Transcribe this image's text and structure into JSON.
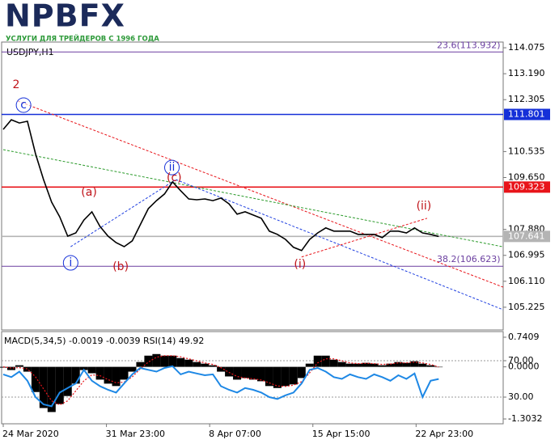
{
  "header": {
    "logo": "NPBFX",
    "tagline": "УСЛУГИ ДЛЯ ТРЕЙДЕРОВ С 1996 ГОДА"
  },
  "chart_data": [
    {
      "type": "line",
      "title": "USDJPY,H1",
      "color": "#000000",
      "x": [
        0,
        2.5,
        5,
        7.5,
        10,
        12.5,
        15,
        17.5,
        20,
        22.5,
        25,
        27.5,
        30,
        32.5,
        35,
        37.5,
        40,
        42.5,
        45,
        47.5,
        50,
        52.5,
        55,
        57.5,
        60,
        62.5,
        65,
        67.5,
        70,
        72.5,
        75,
        77.5,
        80,
        82.5,
        85,
        87.5,
        90,
        92.5,
        95,
        97.5,
        100,
        102.5,
        105,
        107.5,
        110,
        112.5,
        115,
        117.5,
        120,
        122.5,
        125,
        127.5,
        130,
        132.5,
        135
      ],
      "values": [
        111.29,
        111.62,
        111.51,
        111.57,
        110.46,
        109.58,
        108.81,
        108.31,
        107.65,
        107.76,
        108.2,
        108.48,
        107.98,
        107.65,
        107.43,
        107.29,
        107.49,
        108.04,
        108.59,
        108.86,
        109.09,
        109.5,
        109.2,
        108.92,
        108.89,
        108.92,
        108.86,
        108.95,
        108.75,
        108.4,
        108.48,
        108.37,
        108.26,
        107.82,
        107.71,
        107.54,
        107.27,
        107.16,
        107.54,
        107.76,
        107.93,
        107.82,
        107.82,
        107.82,
        107.71,
        107.71,
        107.71,
        107.6,
        107.82,
        107.82,
        107.76,
        107.93,
        107.76,
        107.71,
        107.641
      ],
      "xlim": [
        -0.5,
        155
      ],
      "ylim": [
        104.45,
        114.27
      ],
      "yticks": [
        114.075,
        {
          "value": 113.19,
          "label": "113.190"
        },
        112.305,
        110.535,
        {
          "value": 109.65,
          "label": "109.650"
        },
        {
          "value": 107.88,
          "label": "107.880"
        },
        106.995,
        {
          "value": 106.11,
          "label": "106.110"
        },
        105.225
      ],
      "levels": [
        {
          "value": 113.932,
          "label": "23.6(113.932)",
          "color": "#6b3fa0"
        },
        {
          "value": 111.801,
          "color": "#1530d8"
        },
        {
          "value": 109.323,
          "color": "#e8141a"
        },
        {
          "value": 107.641,
          "color": "#b4b4b4"
        },
        {
          "value": 106.623,
          "label": "38.2(106.623)",
          "color": "#6b3fa0"
        }
      ],
      "trendlines": [
        {
          "points": [
            4.5,
            112.26,
            155,
            105.91
          ],
          "color": "#e8141a"
        },
        {
          "points": [
            0,
            110.6,
            154.8,
            107.29
          ],
          "color": "#2a9a2a"
        },
        {
          "points": [
            20.9,
            107.29,
            53.5,
            109.58
          ],
          "color": "#2040e0"
        },
        {
          "points": [
            53.5,
            109.58,
            155,
            105.14
          ],
          "color": "#2040e0"
        },
        {
          "points": [
            92.5,
            106.94,
            131.4,
            108.26
          ],
          "color": "#e8141a"
        }
      ],
      "annotations": [
        {
          "text": "2",
          "x": 4,
          "y": 112.81,
          "color": "#c0141a",
          "circled": false
        },
        {
          "text": "c",
          "x": 6.3,
          "y": 112.12,
          "color": "#1530d8",
          "circled": true
        },
        {
          "text": "(a)",
          "x": 26.6,
          "y": 109.14,
          "color": "#c0141a",
          "circled": false
        },
        {
          "text": "(b)",
          "x": 36.4,
          "y": 106.6,
          "color": "#c0141a",
          "circled": false
        },
        {
          "text": "i",
          "x": 20.9,
          "y": 106.74,
          "color": "#1530d8",
          "circled": true
        },
        {
          "text": "ii",
          "x": 52.3,
          "y": 109.99,
          "color": "#1530d8",
          "circled": true
        },
        {
          "text": "(c)",
          "x": 53,
          "y": 109.64,
          "color": "#c0141a",
          "circled": false
        },
        {
          "text": "(i)",
          "x": 92,
          "y": 106.69,
          "color": "#c0141a",
          "circled": false
        },
        {
          "text": "(ii)",
          "x": 130.4,
          "y": 108.67,
          "color": "#c0141a",
          "circled": false
        }
      ]
    },
    {
      "type": "indicator",
      "title": "MACD(5,34,5) -0.0019 -0.0039 RSI(14) 49.92",
      "x": [
        0,
        2.5,
        5,
        7.5,
        10,
        12.5,
        15,
        17.5,
        20,
        22.5,
        25,
        27.5,
        30,
        32.5,
        35,
        37.5,
        40,
        42.5,
        45,
        47.5,
        50,
        52.5,
        55,
        57.5,
        60,
        62.5,
        65,
        67.5,
        70,
        72.5,
        75,
        77.5,
        80,
        82.5,
        85,
        87.5,
        90,
        92.5,
        95,
        97.5,
        100,
        102.5,
        105,
        107.5,
        110,
        112.5,
        115,
        117.5,
        120,
        122.5,
        125,
        127.5,
        130,
        132.5,
        135
      ],
      "series": [
        {
          "style": "bar",
          "color": "#000000",
          "values": [
            -0.02,
            -0.08,
            0.04,
            -0.12,
            -0.63,
            -1.03,
            -1.13,
            -0.93,
            -0.73,
            -0.42,
            -0.08,
            -0.16,
            -0.32,
            -0.42,
            -0.48,
            -0.32,
            -0.12,
            0.12,
            0.28,
            0.32,
            0.28,
            0.28,
            0.22,
            0.18,
            0.12,
            0.08,
            0.04,
            -0.12,
            -0.24,
            -0.32,
            -0.28,
            -0.32,
            -0.36,
            -0.48,
            -0.53,
            -0.48,
            -0.44,
            -0.28,
            0.08,
            0.28,
            0.28,
            0.18,
            0.12,
            0.08,
            0.08,
            0.1,
            0.08,
            0.04,
            0.08,
            0.12,
            0.1,
            0.14,
            0.08,
            0.04,
            -0.0019
          ]
        },
        {
          "style": "dotted",
          "color": "#e8141a",
          "values": [
            0,
            -0.03,
            -0.02,
            -0.05,
            -0.25,
            -0.55,
            -0.85,
            -0.95,
            -0.85,
            -0.6,
            -0.35,
            -0.2,
            -0.22,
            -0.32,
            -0.4,
            -0.38,
            -0.25,
            -0.05,
            0.12,
            0.24,
            0.28,
            0.28,
            0.25,
            0.2,
            0.15,
            0.1,
            0.06,
            -0.02,
            -0.14,
            -0.24,
            -0.28,
            -0.3,
            -0.33,
            -0.4,
            -0.48,
            -0.49,
            -0.46,
            -0.37,
            -0.15,
            0.1,
            0.2,
            0.2,
            0.15,
            0.1,
            0.08,
            0.09,
            0.08,
            0.06,
            0.07,
            0.1,
            0.1,
            0.12,
            0.1,
            0.06,
            -0.0039
          ]
        },
        {
          "style": "line",
          "color": "#1e88e5",
          "axis": "y2",
          "values": [
            55,
            52,
            58,
            48,
            30,
            22,
            20,
            35,
            40,
            45,
            60,
            48,
            42,
            38,
            35,
            45,
            55,
            62,
            60,
            58,
            62,
            64,
            55,
            58,
            56,
            54,
            55,
            42,
            38,
            35,
            40,
            38,
            35,
            30,
            28,
            32,
            35,
            45,
            60,
            62,
            58,
            52,
            50,
            55,
            52,
            50,
            55,
            52,
            48,
            54,
            50,
            56,
            30,
            48,
            49.92
          ]
        }
      ],
      "xlim": [
        -0.5,
        155
      ],
      "ylim": [
        -1.424,
        0.882
      ],
      "yticks": [
        0.7409,
        {
          "value": 0,
          "label": "0.0000"
        },
        -1.3032
      ],
      "y2lim": [
        0.7,
        102
      ],
      "y2ticks": [
        {
          "value": 70,
          "label": "70.00"
        },
        {
          "value": 30,
          "label": "30.00"
        }
      ],
      "xticks": [
        {
          "value": 0,
          "label": "24 Mar 2020"
        },
        {
          "value": 32,
          "label": "31 Mar 23:00"
        },
        {
          "value": 64,
          "label": "8 Apr 07:00"
        },
        {
          "value": 96,
          "label": "15 Apr 15:00"
        },
        {
          "value": 128,
          "label": "22 Apr 23:00"
        }
      ]
    }
  ]
}
